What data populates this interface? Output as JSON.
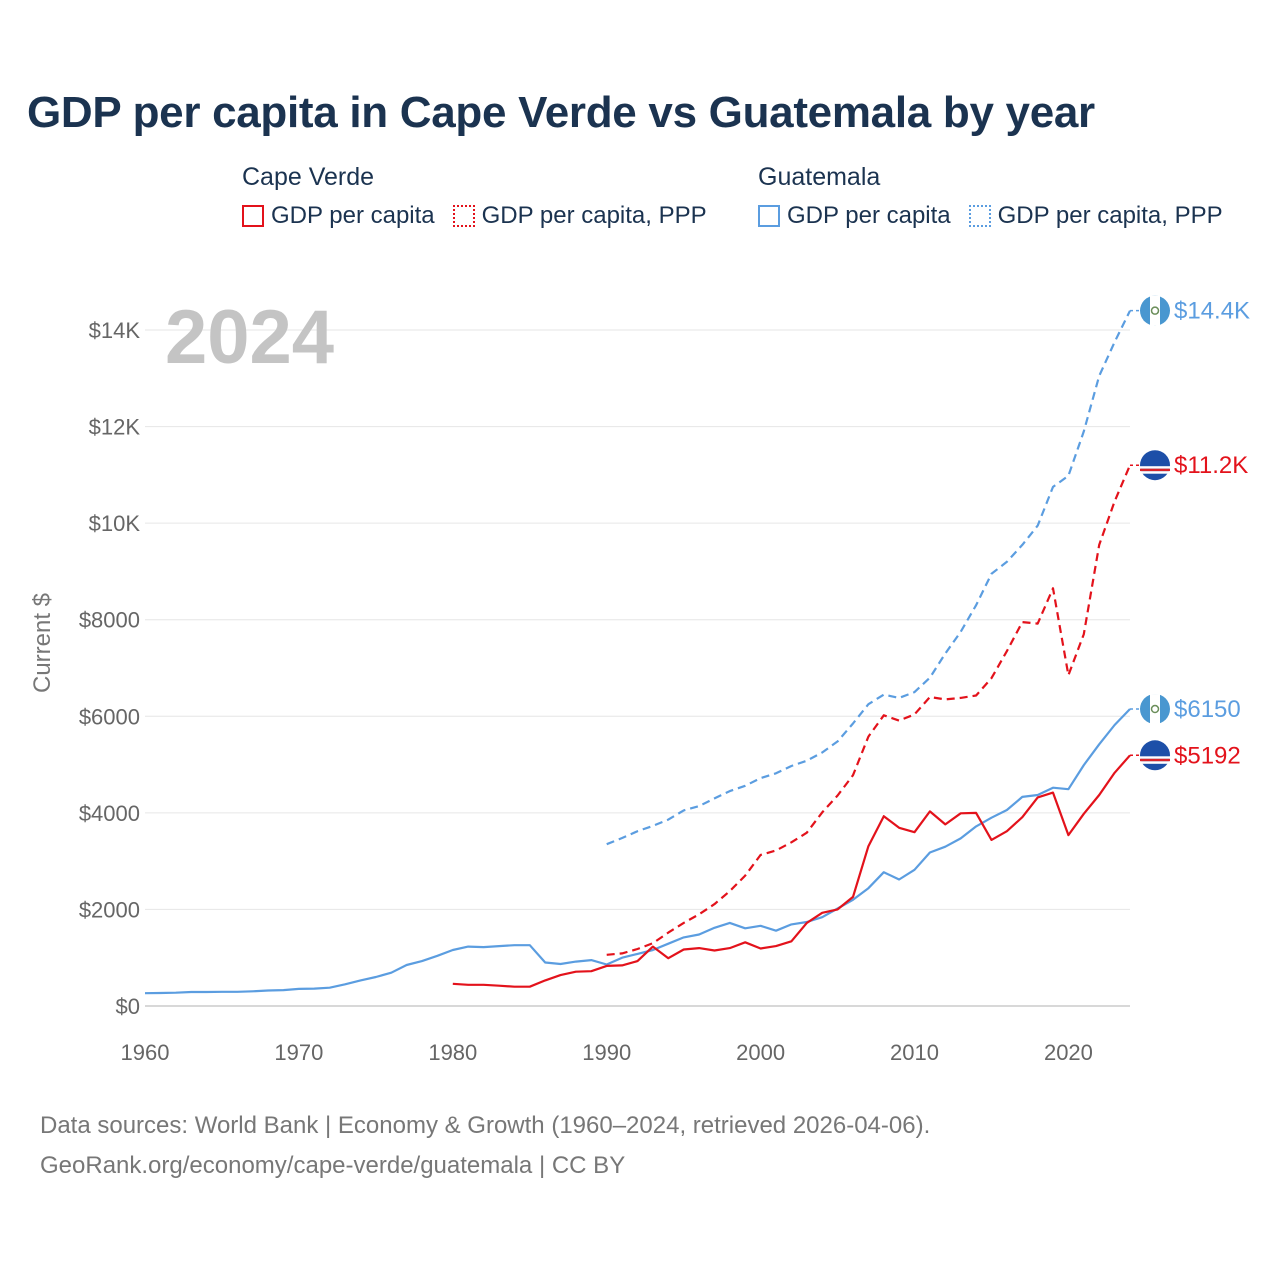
{
  "title": "GDP per capita in Cape Verde vs Guatemala by year",
  "legend": {
    "groups": [
      {
        "name": "Cape Verde",
        "color": "#e3121b",
        "items": [
          {
            "label": "GDP per capita",
            "style": "solid"
          },
          {
            "label": "GDP per capita, PPP",
            "style": "dotted"
          }
        ]
      },
      {
        "name": "Guatemala",
        "color": "#5b9de0",
        "items": [
          {
            "label": "GDP per capita",
            "style": "solid"
          },
          {
            "label": "GDP per capita, PPP",
            "style": "dotted"
          }
        ]
      }
    ]
  },
  "footer": {
    "line1": "Data sources: World Bank | Economy & Growth (1960–2024, retrieved 2026-04-06).",
    "line2": "GeoRank.org/economy/cape-verde/guatemala | CC BY"
  },
  "chart_data": {
    "type": "line",
    "year_label": "2024",
    "ylabel": "Current $",
    "xlim": [
      1960,
      2024
    ],
    "ylim": [
      0,
      14600
    ],
    "x_ticks": [
      1960,
      1970,
      1980,
      1990,
      2000,
      2010,
      2020
    ],
    "x_tick_labels": [
      "1960",
      "1970",
      "1980",
      "1990",
      "2000",
      "2010",
      "2020"
    ],
    "y_ticks": [
      0,
      2000,
      4000,
      6000,
      8000,
      10000,
      12000,
      14000
    ],
    "y_tick_labels": [
      "$0",
      "$2000",
      "$4000",
      "$6000",
      "$8000",
      "$10K",
      "$12K",
      "$14K"
    ],
    "grid": true,
    "series": [
      {
        "name": "Guatemala GDP per capita, PPP",
        "color": "#5b9de0",
        "dash": "dashed",
        "end_label": "$14.4K",
        "flag": "guatemala",
        "points": [
          [
            1990,
            3350
          ],
          [
            1991,
            3480
          ],
          [
            1992,
            3620
          ],
          [
            1993,
            3730
          ],
          [
            1994,
            3860
          ],
          [
            1995,
            4050
          ],
          [
            1996,
            4140
          ],
          [
            1997,
            4300
          ],
          [
            1998,
            4450
          ],
          [
            1999,
            4560
          ],
          [
            2000,
            4720
          ],
          [
            2001,
            4820
          ],
          [
            2002,
            4970
          ],
          [
            2003,
            5080
          ],
          [
            2004,
            5250
          ],
          [
            2005,
            5480
          ],
          [
            2006,
            5850
          ],
          [
            2007,
            6250
          ],
          [
            2008,
            6450
          ],
          [
            2009,
            6380
          ],
          [
            2010,
            6500
          ],
          [
            2011,
            6800
          ],
          [
            2012,
            7300
          ],
          [
            2013,
            7750
          ],
          [
            2014,
            8300
          ],
          [
            2015,
            8950
          ],
          [
            2016,
            9200
          ],
          [
            2017,
            9550
          ],
          [
            2018,
            9950
          ],
          [
            2019,
            10750
          ],
          [
            2020,
            10980
          ],
          [
            2021,
            11900
          ],
          [
            2022,
            13050
          ],
          [
            2023,
            13750
          ],
          [
            2024,
            14400
          ]
        ]
      },
      {
        "name": "Cape Verde GDP per capita, PPP",
        "color": "#e3121b",
        "dash": "dashed",
        "end_label": "$11.2K",
        "flag": "cape-verde",
        "points": [
          [
            1990,
            1060
          ],
          [
            1991,
            1090
          ],
          [
            1992,
            1180
          ],
          [
            1993,
            1300
          ],
          [
            1994,
            1520
          ],
          [
            1995,
            1720
          ],
          [
            1996,
            1900
          ],
          [
            1997,
            2110
          ],
          [
            1998,
            2380
          ],
          [
            1999,
            2700
          ],
          [
            2000,
            3130
          ],
          [
            2001,
            3220
          ],
          [
            2002,
            3390
          ],
          [
            2003,
            3590
          ],
          [
            2004,
            4010
          ],
          [
            2005,
            4360
          ],
          [
            2006,
            4780
          ],
          [
            2007,
            5580
          ],
          [
            2008,
            6020
          ],
          [
            2009,
            5910
          ],
          [
            2010,
            6040
          ],
          [
            2011,
            6400
          ],
          [
            2012,
            6350
          ],
          [
            2013,
            6380
          ],
          [
            2014,
            6430
          ],
          [
            2015,
            6790
          ],
          [
            2016,
            7350
          ],
          [
            2017,
            7950
          ],
          [
            2018,
            7920
          ],
          [
            2019,
            8650
          ],
          [
            2020,
            6850
          ],
          [
            2021,
            7700
          ],
          [
            2022,
            9550
          ],
          [
            2023,
            10450
          ],
          [
            2024,
            11200
          ]
        ]
      },
      {
        "name": "Guatemala GDP per capita",
        "color": "#5b9de0",
        "dash": "solid",
        "end_label": "$6150",
        "flag": "guatemala",
        "points": [
          [
            1960,
            265
          ],
          [
            1961,
            270
          ],
          [
            1962,
            275
          ],
          [
            1963,
            290
          ],
          [
            1964,
            290
          ],
          [
            1965,
            295
          ],
          [
            1966,
            295
          ],
          [
            1967,
            305
          ],
          [
            1968,
            320
          ],
          [
            1969,
            330
          ],
          [
            1970,
            355
          ],
          [
            1971,
            360
          ],
          [
            1972,
            380
          ],
          [
            1973,
            450
          ],
          [
            1974,
            530
          ],
          [
            1975,
            600
          ],
          [
            1976,
            690
          ],
          [
            1977,
            850
          ],
          [
            1978,
            930
          ],
          [
            1979,
            1040
          ],
          [
            1980,
            1160
          ],
          [
            1981,
            1230
          ],
          [
            1982,
            1220
          ],
          [
            1983,
            1240
          ],
          [
            1984,
            1260
          ],
          [
            1985,
            1260
          ],
          [
            1986,
            900
          ],
          [
            1987,
            870
          ],
          [
            1988,
            920
          ],
          [
            1989,
            950
          ],
          [
            1990,
            860
          ],
          [
            1991,
            1000
          ],
          [
            1992,
            1080
          ],
          [
            1993,
            1160
          ],
          [
            1994,
            1290
          ],
          [
            1995,
            1420
          ],
          [
            1996,
            1480
          ],
          [
            1997,
            1620
          ],
          [
            1998,
            1720
          ],
          [
            1999,
            1610
          ],
          [
            2000,
            1660
          ],
          [
            2001,
            1560
          ],
          [
            2002,
            1690
          ],
          [
            2003,
            1740
          ],
          [
            2004,
            1840
          ],
          [
            2005,
            2020
          ],
          [
            2006,
            2200
          ],
          [
            2007,
            2440
          ],
          [
            2008,
            2770
          ],
          [
            2009,
            2620
          ],
          [
            2010,
            2820
          ],
          [
            2011,
            3180
          ],
          [
            2012,
            3300
          ],
          [
            2013,
            3470
          ],
          [
            2014,
            3720
          ],
          [
            2015,
            3900
          ],
          [
            2016,
            4060
          ],
          [
            2017,
            4330
          ],
          [
            2018,
            4370
          ],
          [
            2019,
            4520
          ],
          [
            2020,
            4490
          ],
          [
            2021,
            4990
          ],
          [
            2022,
            5420
          ],
          [
            2023,
            5820
          ],
          [
            2024,
            6150
          ]
        ]
      },
      {
        "name": "Cape Verde GDP per capita",
        "color": "#e3121b",
        "dash": "solid",
        "end_label": "$5192",
        "flag": "cape-verde",
        "points": [
          [
            1980,
            460
          ],
          [
            1981,
            440
          ],
          [
            1982,
            440
          ],
          [
            1983,
            420
          ],
          [
            1984,
            400
          ],
          [
            1985,
            400
          ],
          [
            1986,
            530
          ],
          [
            1987,
            640
          ],
          [
            1988,
            710
          ],
          [
            1989,
            720
          ],
          [
            1990,
            830
          ],
          [
            1991,
            840
          ],
          [
            1992,
            930
          ],
          [
            1993,
            1230
          ],
          [
            1994,
            990
          ],
          [
            1995,
            1170
          ],
          [
            1996,
            1200
          ],
          [
            1997,
            1150
          ],
          [
            1998,
            1200
          ],
          [
            1999,
            1320
          ],
          [
            2000,
            1190
          ],
          [
            2001,
            1240
          ],
          [
            2002,
            1340
          ],
          [
            2003,
            1720
          ],
          [
            2004,
            1930
          ],
          [
            2005,
            2000
          ],
          [
            2006,
            2260
          ],
          [
            2007,
            3310
          ],
          [
            2008,
            3930
          ],
          [
            2009,
            3690
          ],
          [
            2010,
            3600
          ],
          [
            2011,
            4030
          ],
          [
            2012,
            3760
          ],
          [
            2013,
            3990
          ],
          [
            2014,
            4000
          ],
          [
            2015,
            3440
          ],
          [
            2016,
            3620
          ],
          [
            2017,
            3910
          ],
          [
            2018,
            4320
          ],
          [
            2019,
            4420
          ],
          [
            2020,
            3540
          ],
          [
            2021,
            3980
          ],
          [
            2022,
            4370
          ],
          [
            2023,
            4830
          ],
          [
            2024,
            5192
          ]
        ]
      }
    ]
  }
}
